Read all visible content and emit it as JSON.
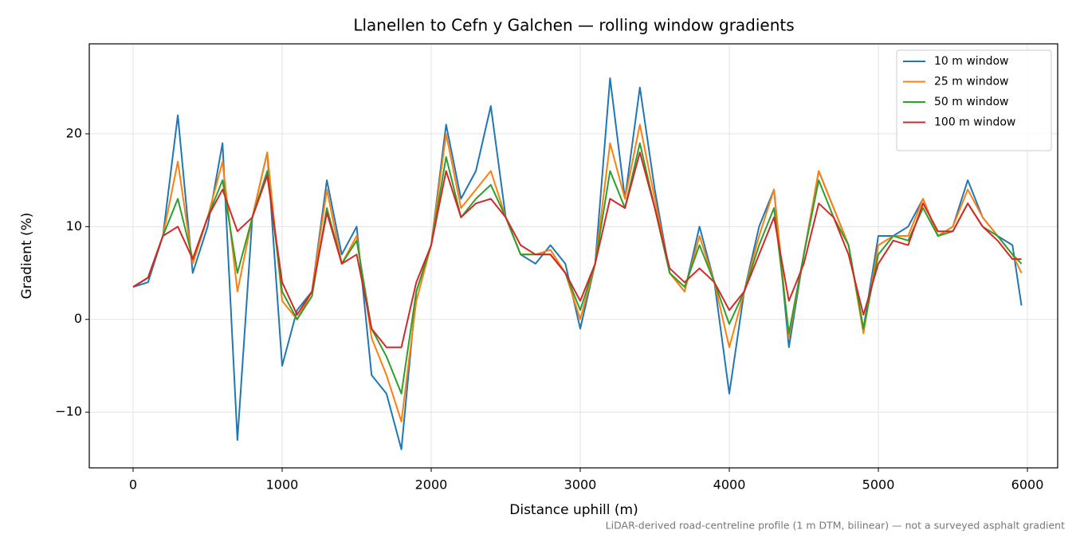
{
  "chart_data": {
    "type": "line",
    "title": "Llanellen to Cefn y Galchen — rolling window gradients",
    "xlabel": "Distance uphill (m)",
    "ylabel": "Gradient (%)",
    "footnote": "LiDAR-derived road-centreline profile (1 m DTM, bilinear) — not a surveyed asphalt gradient",
    "x": [
      0,
      100,
      200,
      300,
      400,
      500,
      600,
      700,
      800,
      900,
      1000,
      1100,
      1200,
      1300,
      1400,
      1500,
      1600,
      1700,
      1800,
      1900,
      2000,
      2100,
      2200,
      2300,
      2400,
      2500,
      2600,
      2700,
      2800,
      2900,
      3000,
      3100,
      3200,
      3300,
      3400,
      3500,
      3600,
      3700,
      3800,
      3900,
      4000,
      4100,
      4200,
      4300,
      4400,
      4500,
      4600,
      4700,
      4800,
      4900,
      5000,
      5100,
      5200,
      5300,
      5400,
      5500,
      5600,
      5700,
      5800,
      5900,
      5960
    ],
    "series": [
      {
        "name": "10 m window",
        "color": "#1f77b4",
        "values": [
          3.5,
          4,
          9,
          22,
          5,
          10,
          19,
          -13,
          11,
          18,
          -5,
          1,
          3,
          15,
          7,
          10,
          -6,
          -8,
          -14,
          3,
          8,
          21,
          13,
          16,
          23,
          11,
          7,
          6,
          8,
          6,
          -1,
          6,
          26,
          13,
          25,
          14,
          5,
          3,
          10,
          4,
          -8,
          3,
          10,
          14,
          -3,
          7,
          16,
          12,
          8,
          -1,
          9,
          9,
          10,
          13,
          9,
          10,
          15,
          11,
          9,
          8,
          1.5
        ]
      },
      {
        "name": "25 m window",
        "color": "#ff7f0e",
        "values": [
          3.5,
          4.5,
          9,
          17,
          6,
          11,
          17,
          3,
          11,
          18,
          2,
          0,
          3,
          14,
          6,
          9,
          -2,
          -6,
          -11,
          2,
          8,
          20,
          12,
          14,
          16,
          11,
          7,
          7,
          7.5,
          5,
          0,
          6,
          19,
          13,
          21,
          13,
          5,
          3,
          9,
          4,
          -3,
          3,
          9,
          14,
          -2,
          7,
          16,
          12,
          8,
          -1.5,
          8,
          9,
          9,
          13,
          9,
          10,
          14,
          11,
          9,
          7,
          5
        ]
      },
      {
        "name": "50 m window",
        "color": "#2ca02c",
        "values": [
          3.5,
          4.5,
          9,
          13,
          6.5,
          11,
          15,
          5,
          11,
          16,
          3,
          0,
          2.5,
          12,
          6,
          8.5,
          -1,
          -4,
          -8,
          3,
          8,
          17.5,
          11,
          13,
          14.5,
          11,
          7,
          7,
          7,
          5,
          1,
          6,
          16,
          12,
          19,
          12,
          5,
          3.5,
          8,
          4,
          -0.5,
          3,
          8,
          12,
          -1.5,
          7,
          15,
          11,
          8,
          -1,
          7,
          9,
          8.5,
          12,
          9,
          9.5,
          12.5,
          10,
          9,
          7,
          6
        ]
      },
      {
        "name": "100 m window",
        "color": "#d62728",
        "values": [
          3.5,
          4.5,
          9,
          10,
          6.5,
          11,
          14,
          9.5,
          11,
          15.5,
          4,
          0.5,
          3,
          11.5,
          6,
          7,
          -1,
          -3,
          -3,
          4,
          8,
          16,
          11,
          12.5,
          13,
          11,
          8,
          7,
          7,
          5,
          2,
          6,
          13,
          12,
          18,
          12,
          5.5,
          4,
          5.5,
          4,
          1,
          3,
          7,
          11,
          2,
          6,
          12.5,
          11,
          7,
          0.5,
          6,
          8.5,
          8,
          12.5,
          9.5,
          9.5,
          12.5,
          10,
          8.5,
          6.5,
          6.5
        ]
      }
    ],
    "xlim": [
      -294,
      6203
    ],
    "ylim": [
      -16.0,
      29.7
    ],
    "xticks": [
      0,
      1000,
      2000,
      3000,
      4000,
      5000,
      6000
    ],
    "yticks": [
      {
        "value": -10,
        "label": "−10"
      },
      0,
      10,
      20
    ],
    "grid": true,
    "legend": "upper right"
  }
}
